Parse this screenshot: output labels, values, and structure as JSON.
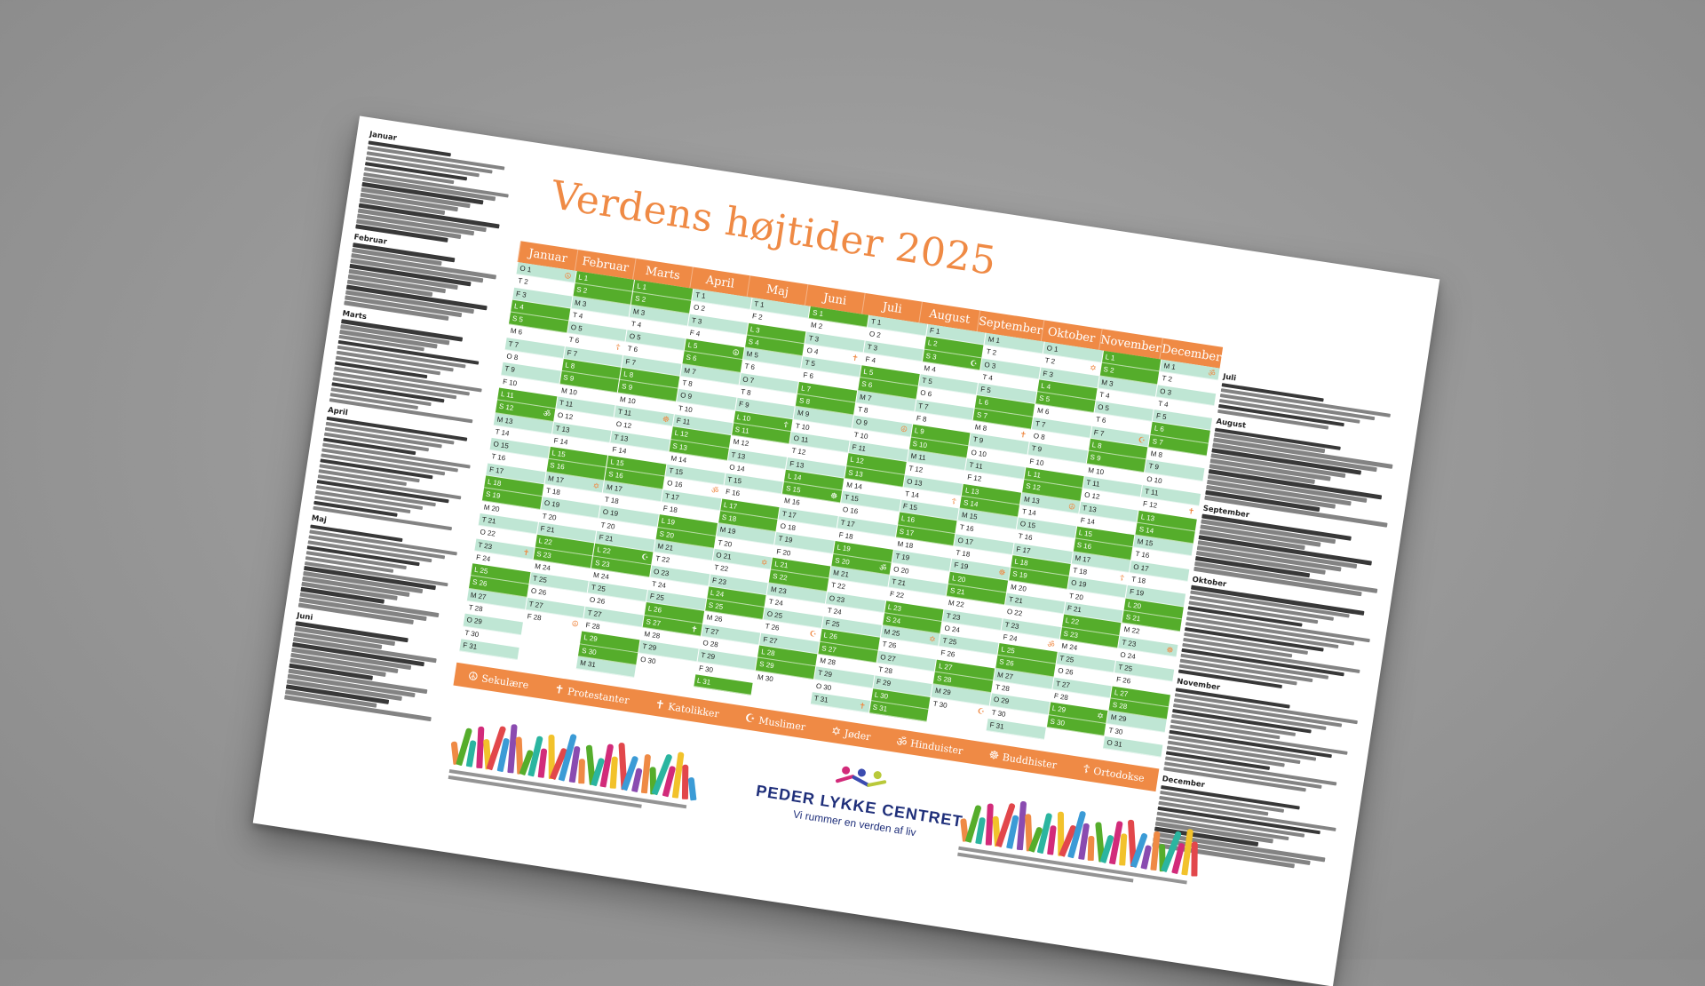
{
  "title": "Verdens højtider 2025",
  "months": [
    "Januar",
    "Februar",
    "Marts",
    "April",
    "Maj",
    "Juni",
    "Juli",
    "August",
    "September",
    "Oktober",
    "November",
    "December"
  ],
  "left_list_headers": [
    "Januar",
    "Februar",
    "Marts",
    "April",
    "Maj",
    "Juni"
  ],
  "right_list_headers": [
    "Juli",
    "August",
    "September",
    "Oktober",
    "November",
    "December"
  ],
  "legend": [
    {
      "icon": "☮",
      "label": "Sekulære",
      "icon_name": "secular-icon"
    },
    {
      "icon": "✝",
      "label": "Protestanter",
      "icon_name": "protestant-cross-icon"
    },
    {
      "icon": "✝",
      "label": "Katolikker",
      "icon_name": "catholic-cross-icon"
    },
    {
      "icon": "☪",
      "label": "Muslimer",
      "icon_name": "crescent-icon"
    },
    {
      "icon": "✡",
      "label": "Jøder",
      "icon_name": "star-of-david-icon"
    },
    {
      "icon": "ॐ",
      "label": "Hinduister",
      "icon_name": "om-icon"
    },
    {
      "icon": "☸",
      "label": "Buddhister",
      "icon_name": "dharma-wheel-icon"
    },
    {
      "icon": "☦",
      "label": "Ortodokse",
      "icon_name": "orthodox-cross-icon"
    }
  ],
  "logo": {
    "name": "PEDER LYKKE CENTRET",
    "tagline": "Vi rummer en verden af liv"
  },
  "colors": {
    "orange": "#ef8a45",
    "green": "#55ad2b",
    "mint": "#bfe6d4",
    "logo_blue": "#1f2f7a"
  },
  "first_weekday_index": [
    2,
    5,
    5,
    1,
    3,
    6,
    1,
    4,
    0,
    2,
    5,
    0
  ],
  "days_in_month": [
    31,
    28,
    31,
    30,
    31,
    30,
    31,
    31,
    30,
    31,
    30,
    31
  ],
  "weekday_letters": [
    "M",
    "T",
    "O",
    "T",
    "F",
    "L",
    "S"
  ]
}
